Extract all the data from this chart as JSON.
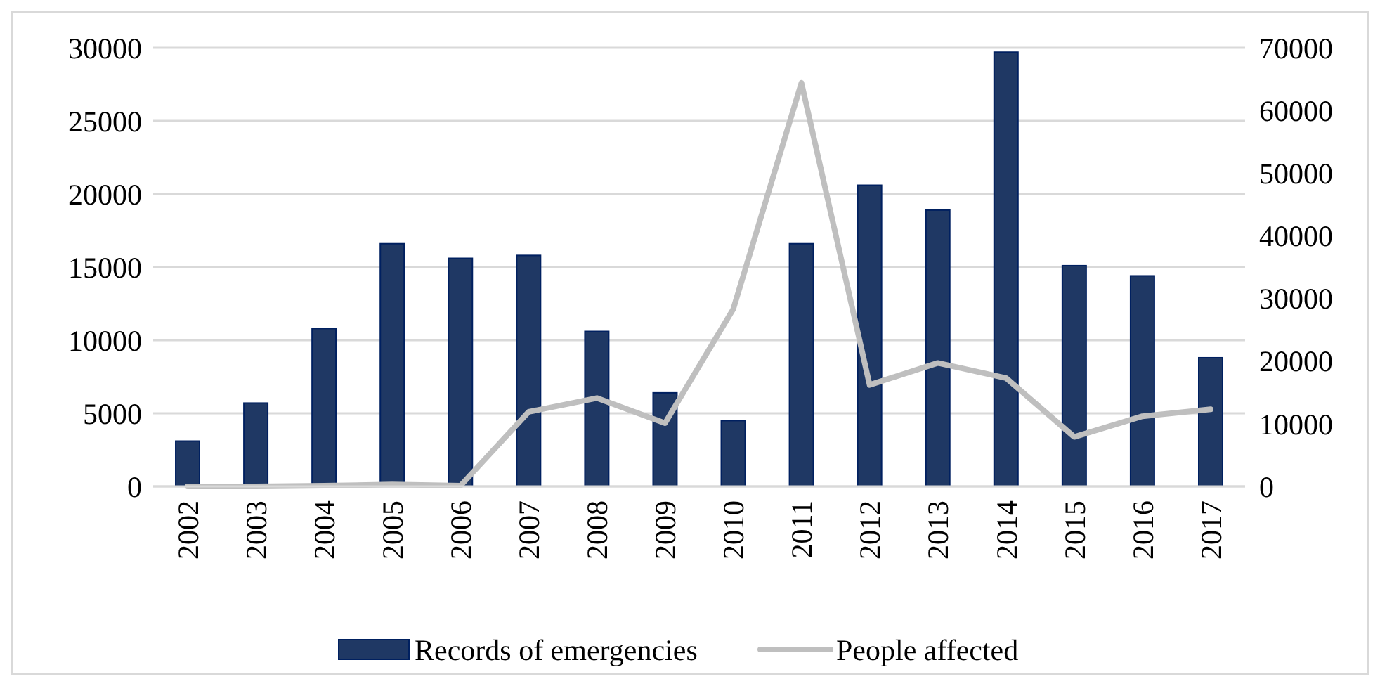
{
  "chart_data": {
    "type": "bar",
    "categories": [
      "2002",
      "2003",
      "2004",
      "2005",
      "2006",
      "2007",
      "2008",
      "2009",
      "2010",
      "2011",
      "2012",
      "2013",
      "2014",
      "2015",
      "2016",
      "2017"
    ],
    "series": [
      {
        "name": "Records of emergencies",
        "color": "#1f3864",
        "values": [
          3100,
          5700,
          10800,
          16600,
          15600,
          15800,
          10600,
          6400,
          4500,
          16600,
          20600,
          18900,
          29700,
          15100,
          14400,
          8800
        ]
      },
      {
        "name": "People affected",
        "type": "line",
        "axis": "y2",
        "color": "#bfbfbf",
        "values": [
          0,
          0,
          100,
          300,
          100,
          11900,
          14100,
          10100,
          28300,
          64400,
          16200,
          19700,
          17300,
          7900,
          11200,
          12300
        ]
      }
    ],
    "ylim": [
      0,
      30000
    ],
    "yticks": [
      0,
      5000,
      10000,
      15000,
      20000,
      25000,
      30000
    ],
    "y2lim": [
      0,
      70000
    ],
    "y2ticks": [
      0,
      10000,
      20000,
      30000,
      40000,
      50000,
      60000,
      70000
    ],
    "grid": "y",
    "legend": "bottom"
  }
}
